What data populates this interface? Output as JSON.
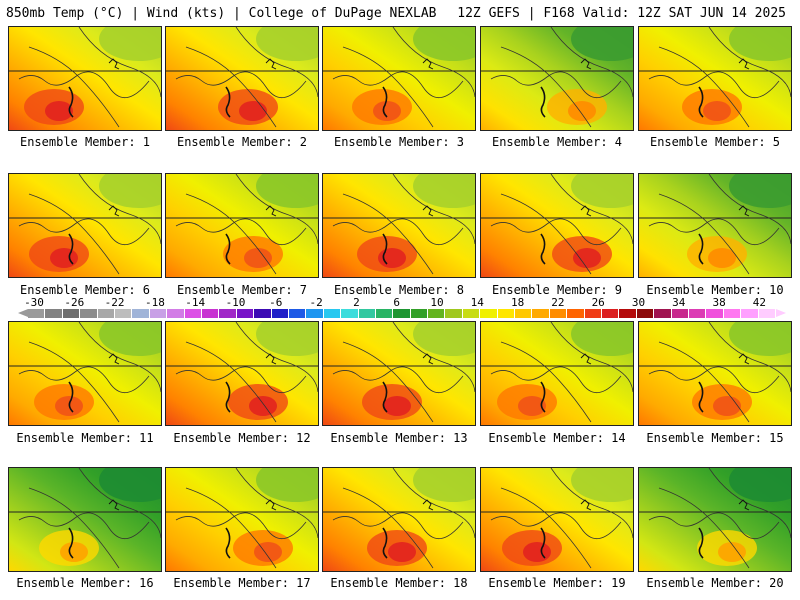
{
  "header": {
    "left": "850mb Temp (°C) | Wind (kts) | College of DuPage NEXLAB",
    "right": "12Z GEFS | F168 Valid: 12Z SAT JUN 14 2025"
  },
  "colorbar": {
    "tick_labels": [
      "-30",
      "-26",
      "-22",
      "-18",
      "-14",
      "-10",
      "-6",
      "-2",
      "2",
      "6",
      "10",
      "14",
      "18",
      "22",
      "26",
      "30",
      "34",
      "38",
      "42"
    ],
    "colors": [
      "#9a9a9a",
      "#828282",
      "#6e6e6e",
      "#8c8c8c",
      "#a8a8a8",
      "#bdbdbd",
      "#a0b4d8",
      "#c8a0e6",
      "#d27ce6",
      "#dc50e6",
      "#c832d2",
      "#a028c8",
      "#7814c8",
      "#3c0ab4",
      "#1e1ec8",
      "#1e5ae6",
      "#1e96f0",
      "#28c8f0",
      "#3cdcdc",
      "#32c8a0",
      "#28b464",
      "#1e9632",
      "#32a028",
      "#64b41e",
      "#a0c81e",
      "#c8dc14",
      "#f0f000",
      "#ffe600",
      "#ffc800",
      "#ffaa00",
      "#ff8c00",
      "#ff6400",
      "#f03c14",
      "#dc1e1e",
      "#b40a0a",
      "#8c0a0a",
      "#a01450",
      "#c8288c",
      "#dc3cb4",
      "#f050dc",
      "#ff78f0",
      "#ffa0ff",
      "#ffccff"
    ]
  },
  "panels": [
    {
      "label": "Ensemble Member: 1",
      "palette": "hot"
    },
    {
      "label": "Ensemble Member: 2",
      "palette": "hot"
    },
    {
      "label": "Ensemble Member: 3",
      "palette": "warm"
    },
    {
      "label": "Ensemble Member: 4",
      "palette": "mild"
    },
    {
      "label": "Ensemble Member: 5",
      "palette": "warm"
    },
    {
      "label": "Ensemble Member: 6",
      "palette": "hot"
    },
    {
      "label": "Ensemble Member: 7",
      "palette": "warm"
    },
    {
      "label": "Ensemble Member: 8",
      "palette": "hot"
    },
    {
      "label": "Ensemble Member: 9",
      "palette": "hot"
    },
    {
      "label": "Ensemble Member: 10",
      "palette": "mild"
    },
    {
      "label": "Ensemble Member: 11",
      "palette": "warm"
    },
    {
      "label": "Ensemble Member: 12",
      "palette": "hot"
    },
    {
      "label": "Ensemble Member: 13",
      "palette": "hot"
    },
    {
      "label": "Ensemble Member: 14",
      "palette": "warm"
    },
    {
      "label": "Ensemble Member: 15",
      "palette": "warm"
    },
    {
      "label": "Ensemble Member: 16",
      "palette": "cool"
    },
    {
      "label": "Ensemble Member: 17",
      "palette": "warm"
    },
    {
      "label": "Ensemble Member: 18",
      "palette": "hot"
    },
    {
      "label": "Ensemble Member: 19",
      "palette": "hot"
    },
    {
      "label": "Ensemble Member: 20",
      "palette": "cool"
    }
  ]
}
